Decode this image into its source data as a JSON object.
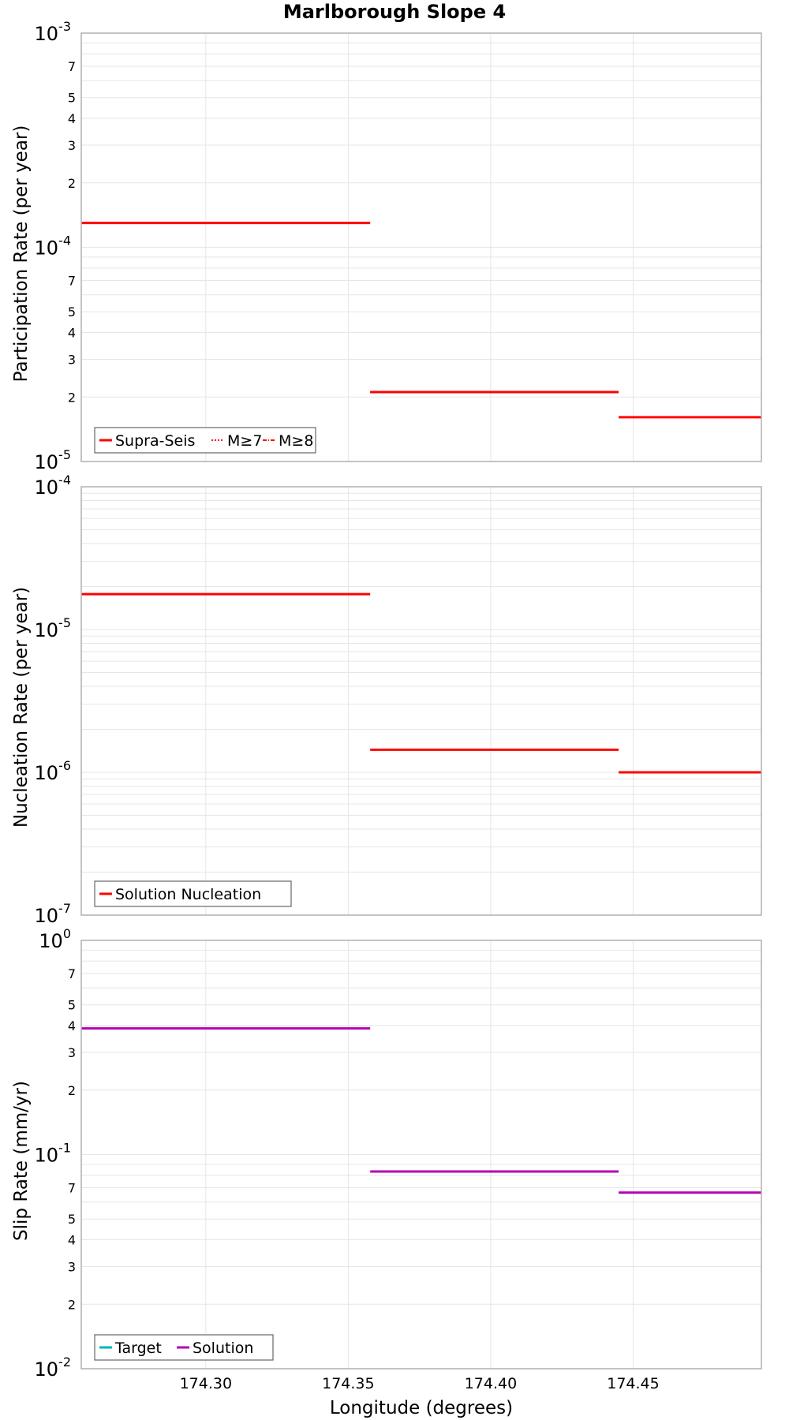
{
  "colors": {
    "red": "#ff0000",
    "magenta": "#b400b4",
    "teal": "#00b4b4",
    "grid": "#e6e6e6",
    "frame": "#b0b0b0"
  },
  "chart_data": {
    "title": "Marlborough Slope 4",
    "xlabel": "Longitude (degrees)",
    "xlim": [
      174.2563,
      174.495
    ],
    "xticks": [
      "174.30",
      "174.35",
      "174.40",
      "174.45"
    ],
    "xtick_values": [
      174.3,
      174.35,
      174.4,
      174.45
    ],
    "panels": [
      {
        "type": "line",
        "scale": "log",
        "ylabel": "Participation Rate (per year)",
        "ylim": [
          1e-05,
          0.001
        ],
        "decades": [
          -5,
          -4,
          -3
        ],
        "legend": [
          "Supra-Seis",
          "M≥7",
          "M≥8"
        ],
        "series": [
          {
            "name": "Supra-Seis",
            "color": "red",
            "style": "solid",
            "segments": [
              [
                174.2563,
                174.3577,
                0.00013
              ],
              [
                174.3577,
                174.4449,
                2.11e-05
              ],
              [
                174.4449,
                174.495,
                1.61e-05
              ]
            ]
          },
          {
            "name": "M≥7",
            "color": "red",
            "style": "dotted",
            "segments": [
              [
                174.2563,
                174.3577,
                0.00013
              ],
              [
                174.3577,
                174.4449,
                2.11e-05
              ],
              [
                174.4449,
                174.495,
                1.61e-05
              ]
            ]
          }
        ]
      },
      {
        "type": "line",
        "scale": "log",
        "ylabel": "Nucleation Rate (per year)",
        "ylim": [
          1e-07,
          0.0001
        ],
        "decades": [
          -7,
          -6,
          -5,
          -4
        ],
        "legend": [
          "Solution Nucleation"
        ],
        "series": [
          {
            "name": "Solution Nucleation",
            "color": "red",
            "style": "solid",
            "segments": [
              [
                174.2563,
                174.3577,
                1.77e-05
              ],
              [
                174.3577,
                174.4449,
                1.44e-06
              ],
              [
                174.4449,
                174.495,
                1e-06
              ]
            ]
          }
        ]
      },
      {
        "type": "line",
        "scale": "log",
        "ylabel": "Slip Rate (mm/yr)",
        "ylim": [
          0.01,
          1
        ],
        "decades": [
          -2,
          -1,
          0
        ],
        "legend": [
          "Target",
          "Solution"
        ],
        "series": [
          {
            "name": "Solution",
            "color": "magenta",
            "style": "solid",
            "segments": [
              [
                174.2563,
                174.3577,
                0.388
              ],
              [
                174.3577,
                174.4449,
                0.0833
              ],
              [
                174.4449,
                174.495,
                0.0664
              ]
            ]
          }
        ]
      }
    ]
  }
}
